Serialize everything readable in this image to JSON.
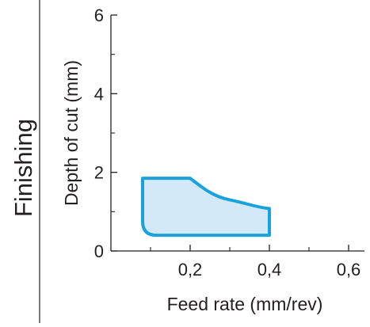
{
  "side_label": "Finishing",
  "colors": {
    "region_stroke": "#1aa2dd",
    "region_fill": "#d3e9f8",
    "axis": "#231f20",
    "divider": "#231f20"
  },
  "chart_data": {
    "type": "area",
    "title": "",
    "xlabel": "Feed rate (mm/rev)",
    "ylabel": "Depth of cut (mm)",
    "xlim": [
      0,
      0.64
    ],
    "ylim": [
      0,
      6
    ],
    "x_ticks": [
      0.2,
      0.4,
      0.6
    ],
    "x_tick_labels": [
      "0,2",
      "0,4",
      "0,6"
    ],
    "x_minor_ticks": [
      0.1,
      0.3,
      0.5
    ],
    "y_ticks": [
      0,
      2,
      4,
      6
    ],
    "y_tick_labels": [
      "0",
      "2",
      "4",
      "6"
    ],
    "y_minor_ticks": [
      1,
      3,
      5
    ],
    "grid": false,
    "region": {
      "name": "",
      "boundary": [
        {
          "x": 0.08,
          "y": 1.85
        },
        {
          "x": 0.2,
          "y": 1.85
        },
        {
          "x": 0.25,
          "y": 1.5
        },
        {
          "x": 0.3,
          "y": 1.3
        },
        {
          "x": 0.35,
          "y": 1.17
        },
        {
          "x": 0.4,
          "y": 1.08
        },
        {
          "x": 0.4,
          "y": 0.4
        },
        {
          "x": 0.115,
          "y": 0.4
        },
        {
          "x": 0.08,
          "y": 0.75
        }
      ]
    }
  }
}
